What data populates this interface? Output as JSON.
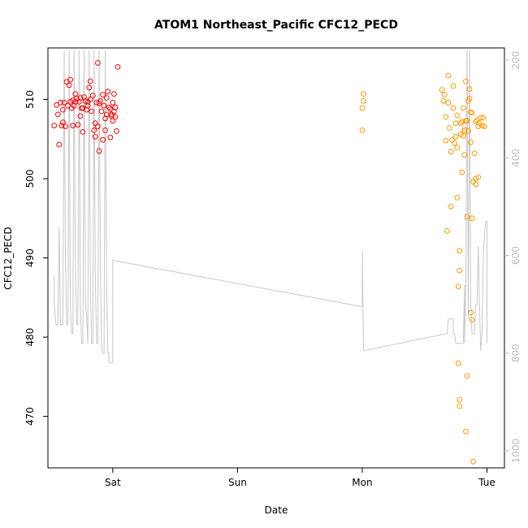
{
  "chart_data": {
    "type": "scatter",
    "title": "ATOM1 Northeast_Pacific CFC12_PECD",
    "xlabel": "Date",
    "ylabel": "CFC12_PECD",
    "x_ticks": [
      {
        "t": 1.0,
        "label": "Sat"
      },
      {
        "t": 2.0,
        "label": "Sun"
      },
      {
        "t": 3.0,
        "label": "Mon"
      },
      {
        "t": 4.0,
        "label": "Tue"
      }
    ],
    "xlim": [
      0.48,
      4.14
    ],
    "ylim": [
      463.5,
      516.5
    ],
    "y_ticks": [
      470,
      480,
      490,
      500,
      510
    ],
    "y2_label": "",
    "y2lim": [
      1035,
      175
    ],
    "y2_ticks": [
      200,
      400,
      600,
      800,
      1000
    ],
    "grid": false,
    "legend": "none",
    "colors": {
      "series1": "#ff0000",
      "series2": "#ff9900",
      "depth_line": "#c8c8c8",
      "right_axis": "#bdbdbd"
    },
    "series": [
      {
        "color": "#ff0000",
        "points": [
          [
            0.53,
            506.7
          ],
          [
            0.55,
            509.3
          ],
          [
            0.56,
            508.1
          ],
          [
            0.57,
            504.3
          ],
          [
            0.58,
            509.6
          ],
          [
            0.59,
            506.7
          ],
          [
            0.6,
            507.1
          ],
          [
            0.6,
            508.7
          ],
          [
            0.61,
            509.6
          ],
          [
            0.62,
            506.6
          ],
          [
            0.63,
            512.2
          ],
          [
            0.64,
            509.2
          ],
          [
            0.65,
            511.8
          ],
          [
            0.66,
            512.5
          ],
          [
            0.66,
            509.7
          ],
          [
            0.67,
            508.9
          ],
          [
            0.68,
            506.7
          ],
          [
            0.69,
            509.2
          ],
          [
            0.7,
            510.7
          ],
          [
            0.71,
            510.1
          ],
          [
            0.72,
            506.8
          ],
          [
            0.73,
            509.7
          ],
          [
            0.74,
            510.2
          ],
          [
            0.75,
            508.9
          ],
          [
            0.76,
            505.9
          ],
          [
            0.77,
            510.3
          ],
          [
            0.78,
            509.8
          ],
          [
            0.79,
            508.7
          ],
          [
            0.8,
            509.2
          ],
          [
            0.81,
            511.5
          ],
          [
            0.82,
            512.3
          ],
          [
            0.83,
            508.5
          ],
          [
            0.84,
            510.5
          ],
          [
            0.85,
            506.1
          ],
          [
            0.86,
            505.3
          ],
          [
            0.87,
            509.6
          ],
          [
            0.88,
            514.6
          ],
          [
            0.88,
            506.6
          ],
          [
            0.89,
            503.5
          ],
          [
            0.9,
            509.8
          ],
          [
            0.91,
            508.5
          ],
          [
            0.92,
            504.9
          ],
          [
            0.93,
            509.2
          ],
          [
            0.94,
            506.1
          ],
          [
            0.95,
            510.2
          ],
          [
            0.96,
            511.0
          ],
          [
            0.97,
            509.0
          ],
          [
            0.98,
            505.2
          ],
          [
            0.99,
            508.1
          ],
          [
            1.0,
            507.3
          ],
          [
            1.0,
            509.6
          ],
          [
            1.01,
            510.7
          ],
          [
            1.02,
            509.0
          ],
          [
            1.03,
            506.0
          ],
          [
            1.04,
            514.1
          ],
          [
            0.7,
            509.7
          ],
          [
            0.76,
            508.9
          ],
          [
            0.82,
            510.0
          ],
          [
            0.86,
            507.0
          ],
          [
            0.92,
            510.6
          ],
          [
            0.95,
            508.1
          ],
          [
            0.98,
            508.8
          ],
          [
            1.01,
            508.5
          ],
          [
            1.02,
            507.8
          ],
          [
            0.74,
            507.9
          ],
          [
            0.68,
            509.9
          ],
          [
            0.89,
            509.5
          ],
          [
            0.94,
            507.6
          ],
          [
            0.8,
            509.7
          ],
          [
            0.99,
            507.9
          ]
        ]
      },
      {
        "color": "#ff9900",
        "points": [
          [
            3.0,
            506.1
          ],
          [
            3.0,
            508.9
          ],
          [
            3.01,
            509.8
          ],
          [
            3.01,
            510.7
          ],
          [
            3.64,
            511.2
          ],
          [
            3.65,
            509.8
          ],
          [
            3.66,
            510.6
          ],
          [
            3.67,
            507.8
          ],
          [
            3.67,
            504.8
          ],
          [
            3.68,
            493.4
          ],
          [
            3.69,
            513.0
          ],
          [
            3.69,
            509.6
          ],
          [
            3.7,
            506.4
          ],
          [
            3.71,
            496.5
          ],
          [
            3.71,
            503.4
          ],
          [
            3.72,
            504.9
          ],
          [
            3.73,
            508.9
          ],
          [
            3.73,
            511.7
          ],
          [
            3.74,
            504.5
          ],
          [
            3.75,
            507.0
          ],
          [
            3.75,
            505.3
          ],
          [
            3.76,
            497.6
          ],
          [
            3.76,
            503.9
          ],
          [
            3.77,
            486.4
          ],
          [
            3.77,
            476.7
          ],
          [
            3.78,
            488.4
          ],
          [
            3.78,
            490.9
          ],
          [
            3.78,
            472.1
          ],
          [
            3.78,
            471.3
          ],
          [
            3.79,
            505.6
          ],
          [
            3.8,
            500.8
          ],
          [
            3.8,
            507.2
          ],
          [
            3.81,
            508.9
          ],
          [
            3.82,
            503.0
          ],
          [
            3.82,
            506.0
          ],
          [
            3.83,
            512.3
          ],
          [
            3.83,
            468.1
          ],
          [
            3.84,
            475.1
          ],
          [
            3.84,
            495.2
          ],
          [
            3.85,
            509.8
          ],
          [
            3.86,
            510.1
          ],
          [
            3.86,
            511.3
          ],
          [
            3.87,
            508.4
          ],
          [
            3.87,
            504.6
          ],
          [
            3.87,
            483.1
          ],
          [
            3.88,
            482.2
          ],
          [
            3.88,
            495.0
          ],
          [
            3.89,
            499.6
          ],
          [
            3.89,
            464.3
          ],
          [
            3.9,
            503.2
          ],
          [
            3.91,
            499.3
          ],
          [
            3.91,
            507.2
          ],
          [
            3.91,
            500.0
          ],
          [
            3.92,
            507.4
          ],
          [
            3.93,
            500.2
          ],
          [
            3.93,
            506.6
          ],
          [
            3.94,
            507.0
          ],
          [
            3.95,
            507.7
          ],
          [
            3.96,
            506.7
          ],
          [
            3.97,
            507.7
          ],
          [
            3.98,
            506.6
          ],
          [
            3.83,
            507.3
          ],
          [
            3.79,
            507.0
          ],
          [
            3.85,
            506.0
          ],
          [
            3.82,
            506.2
          ],
          [
            3.76,
            508.0
          ],
          [
            3.88,
            508.3
          ],
          [
            3.84,
            507.3
          ],
          [
            3.81,
            505.4
          ]
        ]
      }
    ],
    "depth_line": [
      [
        0.53,
        640
      ],
      [
        0.53,
        690
      ],
      [
        0.54,
        730
      ],
      [
        0.545,
        742
      ],
      [
        0.55,
        742
      ],
      [
        0.56,
        742
      ],
      [
        0.57,
        542
      ],
      [
        0.58,
        742
      ],
      [
        0.6,
        742
      ],
      [
        0.61,
        180
      ],
      [
        0.62,
        600
      ],
      [
        0.63,
        742
      ],
      [
        0.64,
        742
      ],
      [
        0.65,
        180
      ],
      [
        0.66,
        700
      ],
      [
        0.67,
        760
      ],
      [
        0.68,
        760
      ],
      [
        0.69,
        180
      ],
      [
        0.7,
        600
      ],
      [
        0.71,
        740
      ],
      [
        0.72,
        742
      ],
      [
        0.73,
        180
      ],
      [
        0.74,
        700
      ],
      [
        0.75,
        780
      ],
      [
        0.76,
        780
      ],
      [
        0.77,
        180
      ],
      [
        0.78,
        700
      ],
      [
        0.79,
        720
      ],
      [
        0.8,
        780
      ],
      [
        0.81,
        180
      ],
      [
        0.82,
        640
      ],
      [
        0.83,
        780
      ],
      [
        0.84,
        780
      ],
      [
        0.85,
        180
      ],
      [
        0.86,
        640
      ],
      [
        0.87,
        780
      ],
      [
        0.88,
        780
      ],
      [
        0.89,
        180
      ],
      [
        0.9,
        600
      ],
      [
        0.91,
        790
      ],
      [
        0.92,
        800
      ],
      [
        0.93,
        800
      ],
      [
        0.94,
        180
      ],
      [
        0.95,
        640
      ],
      [
        0.96,
        800
      ],
      [
        0.97,
        800
      ],
      [
        0.97,
        820
      ],
      [
        0.98,
        820
      ],
      [
        0.99,
        820
      ],
      [
        1.0,
        820
      ],
      [
        1.0,
        610
      ],
      [
        3.0,
        705
      ],
      [
        3.0,
        590
      ],
      [
        3.01,
        795
      ],
      [
        3.68,
        760
      ],
      [
        3.69,
        730
      ],
      [
        3.7,
        730
      ],
      [
        3.71,
        730
      ],
      [
        3.72,
        730
      ],
      [
        3.73,
        730
      ],
      [
        3.73,
        760
      ],
      [
        3.74,
        760
      ],
      [
        3.75,
        780
      ],
      [
        3.76,
        780
      ],
      [
        3.77,
        780
      ],
      [
        3.78,
        780
      ],
      [
        3.79,
        780
      ],
      [
        3.8,
        780
      ],
      [
        3.81,
        780
      ],
      [
        3.82,
        660
      ],
      [
        3.82,
        780
      ],
      [
        3.83,
        680
      ],
      [
        3.84,
        180
      ],
      [
        3.85,
        730
      ],
      [
        3.86,
        180
      ],
      [
        3.87,
        700
      ],
      [
        3.88,
        760
      ],
      [
        3.89,
        760
      ],
      [
        3.9,
        760
      ],
      [
        3.91,
        700
      ],
      [
        3.92,
        700
      ],
      [
        3.93,
        580
      ],
      [
        3.94,
        700
      ],
      [
        3.95,
        795
      ],
      [
        3.96,
        760
      ],
      [
        3.97,
        600
      ],
      [
        3.98,
        560
      ],
      [
        3.99,
        530
      ],
      [
        4.0,
        530
      ],
      [
        4.0,
        780
      ],
      [
        4.0,
        780
      ]
    ]
  }
}
